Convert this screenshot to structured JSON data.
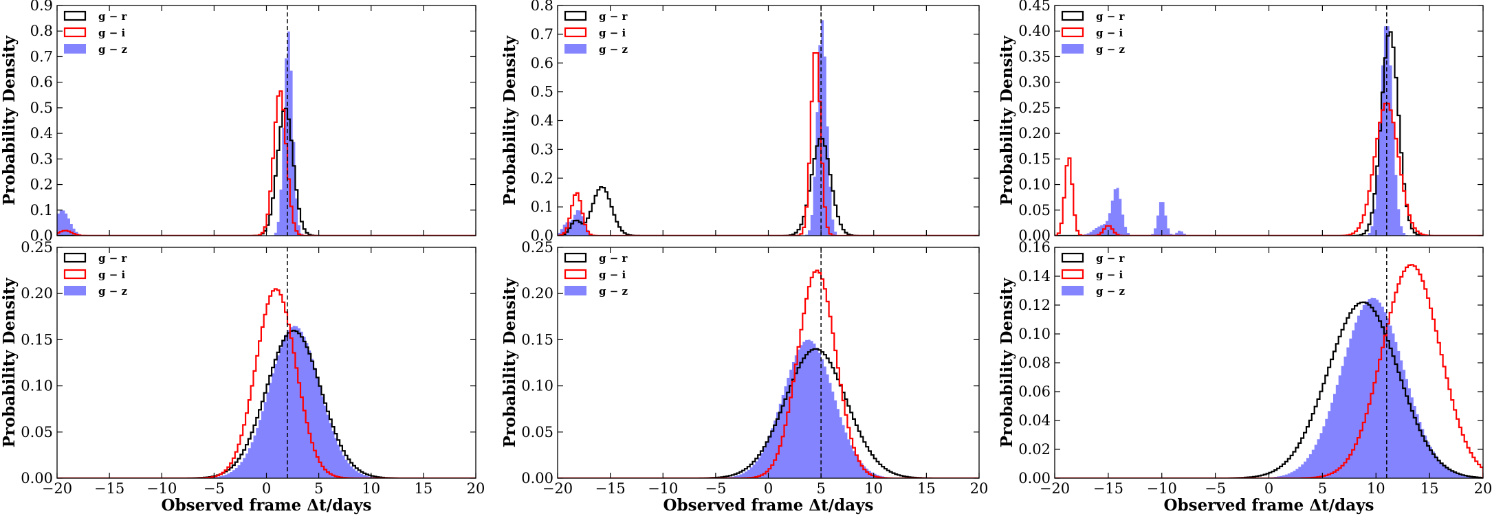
{
  "chart_data": [
    {
      "type": "histogram",
      "panel": "top-left",
      "title": "",
      "xlabel": "",
      "ylabel": "Probability Density",
      "xlim": [
        -20,
        20
      ],
      "ylim": [
        0,
        0.9
      ],
      "xticks": [],
      "yticks": [
        "0.0",
        "0.1",
        "0.2",
        "0.3",
        "0.4",
        "0.5",
        "0.6",
        "0.7",
        "0.8",
        "0.9"
      ],
      "vline": 2,
      "legend": "top-left",
      "series": [
        {
          "name": "g − r",
          "style": "step",
          "color": "#000000",
          "components": [
            {
              "mu": 1.8,
              "sigma": 0.75,
              "peak": 0.5
            }
          ]
        },
        {
          "name": "g − i",
          "style": "step",
          "color": "#ff0000",
          "components": [
            {
              "mu": 1.3,
              "sigma": 0.6,
              "peak": 0.57
            },
            {
              "mu": -19.2,
              "sigma": 0.6,
              "peak": 0.02
            }
          ]
        },
        {
          "name": "g − z",
          "style": "filled",
          "color": "#7777ff",
          "components": [
            {
              "mu": 2.1,
              "sigma": 0.42,
              "peak": 0.8
            },
            {
              "mu": -19.5,
              "sigma": 0.7,
              "peak": 0.1
            }
          ]
        }
      ]
    },
    {
      "type": "histogram",
      "panel": "top-middle",
      "title": "",
      "xlabel": "",
      "ylabel": "Probability Density",
      "xlim": [
        -20,
        20
      ],
      "ylim": [
        0,
        0.8
      ],
      "xticks": [],
      "yticks": [
        "0.0",
        "0.1",
        "0.2",
        "0.3",
        "0.4",
        "0.5",
        "0.6",
        "0.7",
        "0.8"
      ],
      "vline": 5,
      "legend": "top-left",
      "series": [
        {
          "name": "g − r",
          "style": "step",
          "color": "#000000",
          "components": [
            {
              "mu": 5.0,
              "sigma": 0.9,
              "peak": 0.34
            },
            {
              "mu": -15.8,
              "sigma": 0.9,
              "peak": 0.17
            },
            {
              "mu": -18.3,
              "sigma": 0.5,
              "peak": 0.05
            }
          ]
        },
        {
          "name": "g − i",
          "style": "step",
          "color": "#ff0000",
          "components": [
            {
              "mu": 4.5,
              "sigma": 0.45,
              "peak": 0.66
            },
            {
              "mu": -18.2,
              "sigma": 0.5,
              "peak": 0.15
            }
          ]
        },
        {
          "name": "g − z",
          "style": "filled",
          "color": "#7777ff",
          "components": [
            {
              "mu": 5.1,
              "sigma": 0.45,
              "peak": 0.75
            },
            {
              "mu": -18.0,
              "sigma": 0.5,
              "peak": 0.09
            },
            {
              "mu": -19.2,
              "sigma": 0.4,
              "peak": 0.04
            }
          ]
        }
      ]
    },
    {
      "type": "histogram",
      "panel": "top-right",
      "title": "",
      "xlabel": "",
      "ylabel": "Probability Density",
      "xlim": [
        -20,
        20
      ],
      "ylim": [
        0,
        0.45
      ],
      "xticks": [],
      "yticks": [
        "0.00",
        "0.05",
        "0.10",
        "0.15",
        "0.20",
        "0.25",
        "0.30",
        "0.35",
        "0.40",
        "0.45"
      ],
      "vline": 11,
      "legend": "top-left",
      "series": [
        {
          "name": "g − r",
          "style": "step",
          "color": "#000000",
          "components": [
            {
              "mu": 11.3,
              "sigma": 0.8,
              "peak": 0.4
            }
          ]
        },
        {
          "name": "g − i",
          "style": "step",
          "color": "#ff0000",
          "components": [
            {
              "mu": 11.0,
              "sigma": 1.1,
              "peak": 0.26
            },
            {
              "mu": -18.7,
              "sigma": 0.35,
              "peak": 0.155
            },
            {
              "mu": -15.0,
              "sigma": 0.4,
              "peak": 0.02
            }
          ]
        },
        {
          "name": "g − z",
          "style": "filled",
          "color": "#7777ff",
          "components": [
            {
              "mu": 11.0,
              "sigma": 0.55,
              "peak": 0.42
            },
            {
              "mu": -14.2,
              "sigma": 0.45,
              "peak": 0.09
            },
            {
              "mu": -10.0,
              "sigma": 0.35,
              "peak": 0.07
            },
            {
              "mu": -15.5,
              "sigma": 0.8,
              "peak": 0.02
            },
            {
              "mu": -8.3,
              "sigma": 0.3,
              "peak": 0.01
            }
          ]
        }
      ]
    },
    {
      "type": "histogram",
      "panel": "bottom-left",
      "title": "",
      "xlabel": "Observed frame Δt/days",
      "ylabel": "Probability Density",
      "xlim": [
        -20,
        20
      ],
      "ylim": [
        0,
        0.25
      ],
      "xticks": [
        "−20",
        "−15",
        "−10",
        "−5",
        "0",
        "5",
        "10",
        "15",
        "20"
      ],
      "yticks": [
        "0.00",
        "0.05",
        "0.10",
        "0.15",
        "0.20",
        "0.25"
      ],
      "vline": 2,
      "legend": "top-left",
      "series": [
        {
          "name": "g − r",
          "style": "step",
          "color": "#000000",
          "components": [
            {
              "mu": 2.6,
              "sigma": 2.6,
              "peak": 0.16
            }
          ]
        },
        {
          "name": "g − i",
          "style": "step",
          "color": "#ff0000",
          "components": [
            {
              "mu": 0.9,
              "sigma": 1.9,
              "peak": 0.205
            }
          ]
        },
        {
          "name": "g − z",
          "style": "filled",
          "color": "#7777ff",
          "components": [
            {
              "mu": 2.7,
              "sigma": 2.4,
              "peak": 0.165
            }
          ]
        }
      ]
    },
    {
      "type": "histogram",
      "panel": "bottom-middle",
      "title": "",
      "xlabel": "Observed frame Δt/days",
      "ylabel": "Probability Density",
      "xlim": [
        -20,
        20
      ],
      "ylim": [
        0,
        0.25
      ],
      "xticks": [
        "−20",
        "−15",
        "−10",
        "−5",
        "0",
        "5",
        "10",
        "15",
        "20"
      ],
      "yticks": [
        "0.00",
        "0.05",
        "0.10",
        "0.15",
        "0.20",
        "0.25"
      ],
      "vline": 5,
      "legend": "top-left",
      "series": [
        {
          "name": "g − r",
          "style": "step",
          "color": "#000000",
          "components": [
            {
              "mu": 4.5,
              "sigma": 2.9,
              "peak": 0.14
            }
          ]
        },
        {
          "name": "g − i",
          "style": "step",
          "color": "#ff0000",
          "components": [
            {
              "mu": 4.6,
              "sigma": 1.8,
              "peak": 0.225
            }
          ]
        },
        {
          "name": "g − z",
          "style": "filled",
          "color": "#7777ff",
          "components": [
            {
              "mu": 3.8,
              "sigma": 2.4,
              "peak": 0.15
            }
          ]
        }
      ]
    },
    {
      "type": "histogram",
      "panel": "bottom-right",
      "title": "",
      "xlabel": "Observed frame Δt/days",
      "ylabel": "Probability Density",
      "xlim": [
        -20,
        20
      ],
      "ylim": [
        0,
        0.16
      ],
      "xticks": [
        "−20",
        "−15",
        "−10",
        "−5",
        "0",
        "5",
        "10",
        "15",
        "20"
      ],
      "yticks": [
        "0.00",
        "0.02",
        "0.04",
        "0.06",
        "0.08",
        "0.10",
        "0.12",
        "0.14",
        "0.16"
      ],
      "vline": 11,
      "legend": "top-left",
      "series": [
        {
          "name": "g − r",
          "style": "step",
          "color": "#000000",
          "components": [
            {
              "mu": 8.8,
              "sigma": 3.3,
              "peak": 0.122
            }
          ]
        },
        {
          "name": "g − i",
          "style": "step",
          "color": "#ff0000",
          "components": [
            {
              "mu": 13.3,
              "sigma": 2.7,
              "peak": 0.148
            }
          ]
        },
        {
          "name": "g − z",
          "style": "filled",
          "color": "#7777ff",
          "components": [
            {
              "mu": 9.7,
              "sigma": 2.9,
              "peak": 0.125
            }
          ]
        }
      ]
    }
  ]
}
